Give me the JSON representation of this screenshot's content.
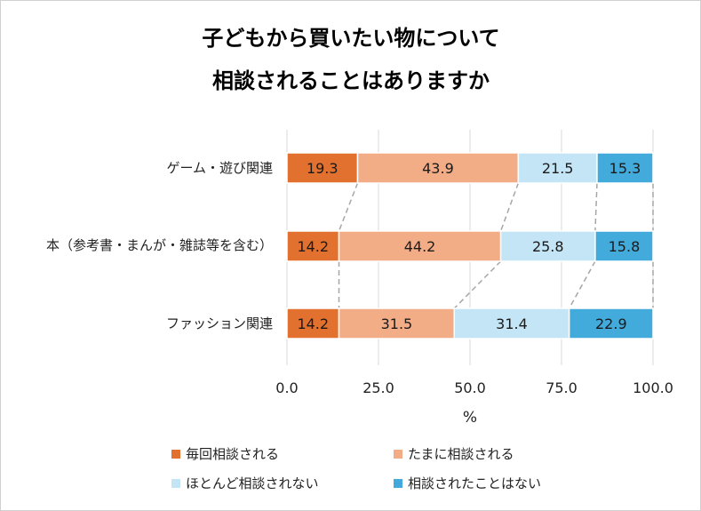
{
  "chart_data": {
    "type": "bar",
    "orientation": "horizontal",
    "stacked": true,
    "title_lines": [
      "子どもから買いたい物について",
      "相談されることはありますか"
    ],
    "categories": [
      "ゲーム・遊び関連",
      "本（参考書・まんが・雑誌等を含む）",
      "ファッション関連"
    ],
    "series": [
      {
        "name": "毎回相談される",
        "color": "#E2712F",
        "values": [
          19.3,
          14.2,
          14.2
        ]
      },
      {
        "name": "たまに相談される",
        "color": "#F2AC86",
        "values": [
          43.9,
          44.2,
          31.5
        ]
      },
      {
        "name": "ほとんど相談されない",
        "color": "#C4E5F5",
        "values": [
          21.5,
          25.8,
          31.4
        ]
      },
      {
        "name": "相談されたことはない",
        "color": "#43ABDC",
        "values": [
          15.3,
          15.8,
          22.9
        ]
      }
    ],
    "value_labels": [
      [
        "19.3",
        "14.2",
        "14.2"
      ],
      [
        "43.9",
        "44.2",
        "31.5"
      ],
      [
        "21.5",
        "25.8",
        "31.4"
      ],
      [
        "15.3",
        "15.8",
        "22.9"
      ]
    ],
    "xlabel": "%",
    "xlim": [
      0,
      100
    ],
    "xticks": [
      0,
      25,
      50,
      75,
      100
    ],
    "xtick_labels": [
      "0.0",
      "25.0",
      "50.0",
      "75.0",
      "100.0"
    ],
    "grid": true,
    "series_lines": true,
    "legend_position": "bottom"
  }
}
